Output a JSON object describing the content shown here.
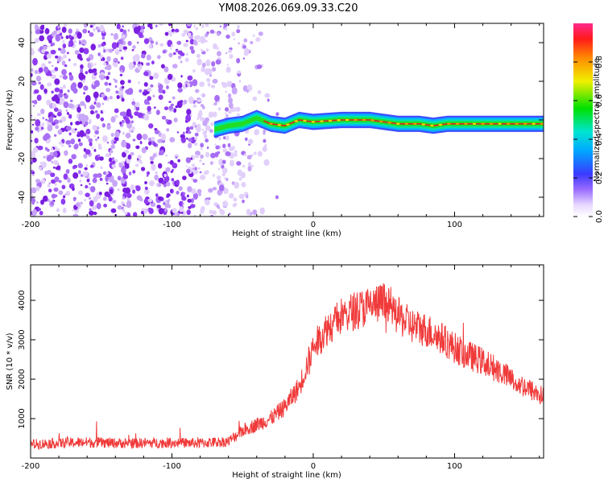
{
  "title": "YM08.2026.069.09.33.C20",
  "colors": {
    "series": "#f03a3a",
    "speckle": "#8a2be2"
  },
  "spectrogram": {
    "chart_data": {
      "type": "heatmap",
      "xlabel": "Height of straight line (km)",
      "ylabel": "Frequency (Hz)",
      "xlim": [
        -200,
        163
      ],
      "ylim": [
        -50,
        50
      ],
      "x_ticks": [
        -200,
        -100,
        0,
        100
      ],
      "y_ticks": [
        -40,
        -20,
        0,
        20,
        40
      ],
      "colorbar": {
        "label": "Normalized spectral amplitude",
        "range": [
          0,
          1
        ],
        "ticks": [
          "0.0",
          "0.2",
          "0.4",
          "0.6",
          "0.8"
        ],
        "colormap": "rainbow"
      },
      "noise_region_x": [
        -200,
        -35
      ],
      "ridge": [
        [
          -70,
          -5
        ],
        [
          -60,
          -3
        ],
        [
          -50,
          -2
        ],
        [
          -40,
          1
        ],
        [
          -30,
          -2
        ],
        [
          -20,
          -3
        ],
        [
          -10,
          0
        ],
        [
          0,
          -1
        ],
        [
          20,
          0
        ],
        [
          40,
          0
        ],
        [
          60,
          -2
        ],
        [
          75,
          -2
        ],
        [
          85,
          -3
        ],
        [
          95,
          -2
        ],
        [
          120,
          -2
        ],
        [
          163,
          -2
        ]
      ]
    }
  },
  "snr": {
    "chart_data": {
      "type": "line",
      "xlabel": "Height of straight line (km)",
      "ylabel": "SNR (10 * v/v)",
      "xlim": [
        -200,
        163
      ],
      "ylim": [
        0,
        4900
      ],
      "x_ticks": [
        -200,
        -100,
        0,
        100
      ],
      "y_ticks": [
        1000,
        2000,
        3000,
        4000
      ],
      "series": [
        {
          "x": [
            -200,
            -180,
            -160,
            -140,
            -120,
            -100,
            -80,
            -60,
            -50,
            -40,
            -30,
            -20,
            -10,
            0,
            10,
            20,
            30,
            40,
            50,
            60,
            70,
            80,
            90,
            100,
            110,
            120,
            130,
            140,
            150,
            163
          ],
          "y": [
            350,
            380,
            400,
            380,
            380,
            390,
            380,
            420,
            700,
            850,
            1000,
            1300,
            1800,
            2800,
            3300,
            3600,
            3750,
            3850,
            3950,
            3600,
            3350,
            3250,
            3050,
            2800,
            2600,
            2450,
            2250,
            2000,
            1800,
            1550
          ]
        }
      ]
    }
  }
}
